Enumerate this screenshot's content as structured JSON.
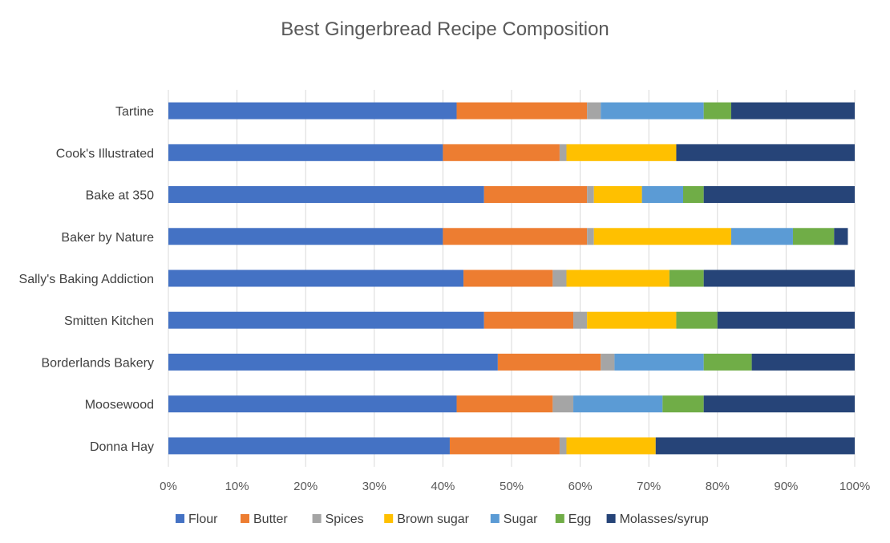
{
  "chart_data": {
    "type": "bar",
    "orientation": "horizontal",
    "stacked": "percent",
    "title": "Best Gingerbread Recipe Composition",
    "xlabel": "",
    "ylabel": "",
    "xlim": [
      0,
      100
    ],
    "x_ticks": [
      "0%",
      "10%",
      "20%",
      "30%",
      "40%",
      "50%",
      "60%",
      "70%",
      "80%",
      "90%",
      "100%"
    ],
    "grid": "vertical",
    "legend_position": "bottom",
    "categories": [
      "Tartine",
      "Cook's Illustrated",
      "Bake at 350",
      "Baker by Nature",
      "Sally's Baking Addiction",
      "Smitten Kitchen",
      "Borderlands Bakery",
      "Moosewood",
      "Donna Hay"
    ],
    "series": [
      {
        "name": "Flour",
        "color": "#4472c4",
        "values": [
          42,
          40,
          46,
          40,
          43,
          46,
          48,
          42,
          41
        ]
      },
      {
        "name": "Butter",
        "color": "#ed7d31",
        "values": [
          19,
          17,
          15,
          21,
          13,
          13,
          15,
          14,
          16
        ]
      },
      {
        "name": "Spices",
        "color": "#a5a5a5",
        "values": [
          2,
          1,
          1,
          1,
          2,
          2,
          2,
          3,
          1
        ]
      },
      {
        "name": "Brown sugar",
        "color": "#ffc000",
        "values": [
          0,
          16,
          7,
          20,
          15,
          13,
          0,
          0,
          13
        ]
      },
      {
        "name": "Sugar",
        "color": "#5b9bd5",
        "values": [
          15,
          0,
          6,
          9,
          0,
          0,
          13,
          13,
          0
        ]
      },
      {
        "name": "Egg",
        "color": "#70ad47",
        "values": [
          4,
          0,
          3,
          6,
          5,
          6,
          7,
          6,
          0
        ]
      },
      {
        "name": "Molasses/syrup",
        "color": "#264478",
        "values": [
          18,
          26,
          22,
          2,
          22,
          20,
          15,
          22,
          29
        ]
      }
    ]
  }
}
